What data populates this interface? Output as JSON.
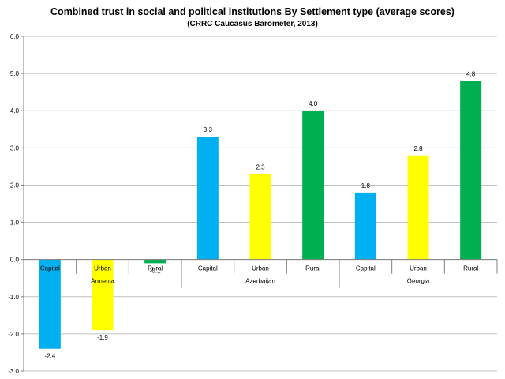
{
  "chart_data": {
    "type": "bar",
    "title": "Combined trust in social and political institutions By Settlement type (average scores)",
    "subtitle": "(CRRC Caucasus Barometer, 2013)",
    "xlabel": "",
    "ylabel": "",
    "ylim": [
      -3.0,
      6.0
    ],
    "yticks": [
      "6.0",
      "5.0",
      "4.0",
      "3.0",
      "2.0",
      "1.0",
      "0.0",
      "-1.0",
      "-2.0",
      "-3.0"
    ],
    "grid": "horizontal",
    "legend": "none",
    "groups": [
      {
        "label": "Armenia",
        "categories": [
          {
            "label": "Capital",
            "value": -2.4,
            "value_label": "-2.4",
            "color": "#00B0F0"
          },
          {
            "label": "Urban",
            "value": -1.9,
            "value_label": "-1.9",
            "color": "#FFFF00"
          },
          {
            "label": "Rural",
            "value": -0.1,
            "value_label": "-0.1",
            "color": "#00B050"
          }
        ]
      },
      {
        "label": "Azerbaijan",
        "categories": [
          {
            "label": "Capital",
            "value": 3.3,
            "value_label": "3.3",
            "color": "#00B0F0"
          },
          {
            "label": "Urban",
            "value": 2.3,
            "value_label": "2.3",
            "color": "#FFFF00"
          },
          {
            "label": "Rural",
            "value": 4.0,
            "value_label": "4.0",
            "color": "#00B050"
          }
        ]
      },
      {
        "label": "Georgia",
        "categories": [
          {
            "label": "Capital",
            "value": 1.8,
            "value_label": "1.8",
            "color": "#00B0F0"
          },
          {
            "label": "Urban",
            "value": 2.8,
            "value_label": "2.8",
            "color": "#FFFF00"
          },
          {
            "label": "Rural",
            "value": 4.8,
            "value_label": "4.8",
            "color": "#00B050"
          }
        ]
      }
    ],
    "colors": {
      "grid": "#C0C0C0",
      "axis": "#808080"
    }
  }
}
